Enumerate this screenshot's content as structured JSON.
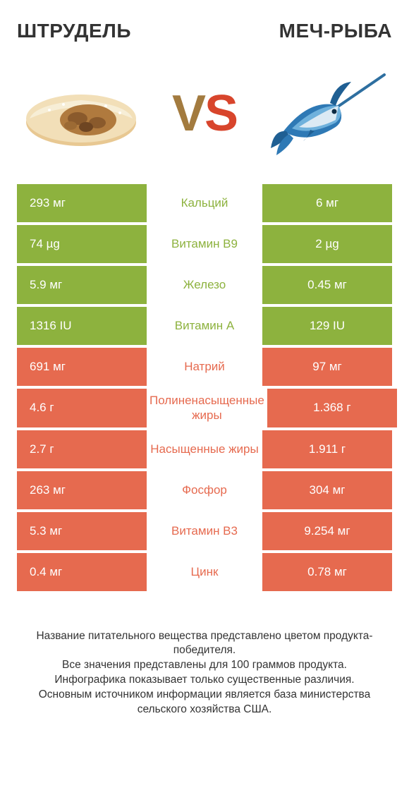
{
  "colors": {
    "green": "#8db23e",
    "orange": "#e66a4f",
    "text": "#333333",
    "vs_v": "#a37b3f",
    "vs_s": "#d8452c"
  },
  "header": {
    "left_title": "ШТРУДЕЛЬ",
    "right_title": "МЕЧ-РЫБА",
    "vs_v": "V",
    "vs_s": "S"
  },
  "rows": [
    {
      "left": "293 мг",
      "mid": "Кальций",
      "right": "6 мг",
      "winner": "left"
    },
    {
      "left": "74 µg",
      "mid": "Витамин B9",
      "right": "2 µg",
      "winner": "left"
    },
    {
      "left": "5.9 мг",
      "mid": "Железо",
      "right": "0.45 мг",
      "winner": "left"
    },
    {
      "left": "1316 IU",
      "mid": "Витамин A",
      "right": "129 IU",
      "winner": "left"
    },
    {
      "left": "691 мг",
      "mid": "Натрий",
      "right": "97 мг",
      "winner": "right"
    },
    {
      "left": "4.6 г",
      "mid": "Полиненасыщенные жиры",
      "right": "1.368 г",
      "winner": "right"
    },
    {
      "left": "2.7 г",
      "mid": "Насыщенные жиры",
      "right": "1.911 г",
      "winner": "right"
    },
    {
      "left": "263 мг",
      "mid": "Фосфор",
      "right": "304 мг",
      "winner": "right"
    },
    {
      "left": "5.3 мг",
      "mid": "Витамин B3",
      "right": "9.254 мг",
      "winner": "right"
    },
    {
      "left": "0.4 мг",
      "mid": "Цинк",
      "right": "0.78 мг",
      "winner": "right"
    }
  ],
  "footnote": "Название питательного вещества представлено цветом продукта-победителя.\nВсе значения представлены для 100 граммов продукта.\nИнфографика показывает только существенные различия.\nОсновным источником информации является база министерства сельского хозяйства США."
}
